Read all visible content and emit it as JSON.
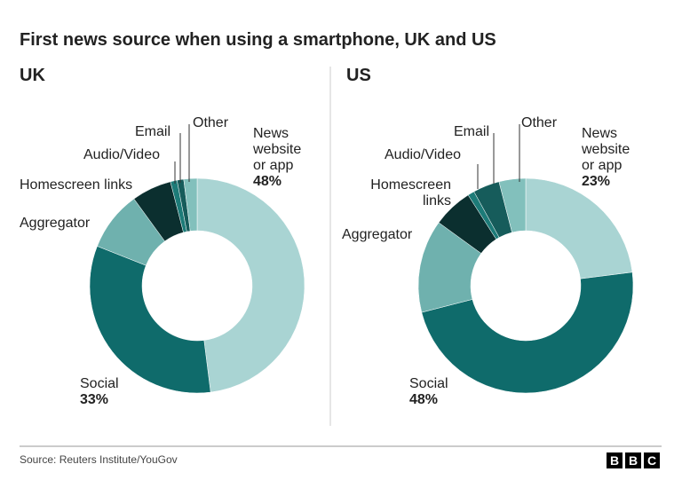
{
  "title": "First news source when using a smartphone, UK and US",
  "source": "Source: Reuters Institute/YouGov",
  "logo": [
    "B",
    "B",
    "C"
  ],
  "chart_data": [
    {
      "type": "donut",
      "title": "UK",
      "categories": [
        "News website or app",
        "Social",
        "Aggregator",
        "Homescreen links",
        "Audio/Video",
        "Email",
        "Other"
      ],
      "values": [
        48,
        33,
        9,
        6,
        1,
        1,
        2
      ],
      "value_labels": [
        "48%",
        "33%",
        null,
        null,
        null,
        null,
        null
      ],
      "colors": [
        "#a9d4d3",
        "#0f6b6b",
        "#6fb1ae",
        "#0b2f2f",
        "#1d7b78",
        "#165c5b",
        "#82c0bc"
      ]
    },
    {
      "type": "donut",
      "title": "US",
      "categories": [
        "News website or app",
        "Social",
        "Aggregator",
        "Homescreen links",
        "Audio/Video",
        "Email",
        "Other"
      ],
      "values": [
        23,
        48,
        14,
        6,
        1,
        4,
        4
      ],
      "value_labels": [
        "23%",
        "48%",
        null,
        null,
        null,
        null,
        null
      ],
      "colors": [
        "#a9d4d3",
        "#0f6b6b",
        "#6fb1ae",
        "#0b2f2f",
        "#1d7b78",
        "#165c5b",
        "#82c0bc"
      ]
    }
  ]
}
